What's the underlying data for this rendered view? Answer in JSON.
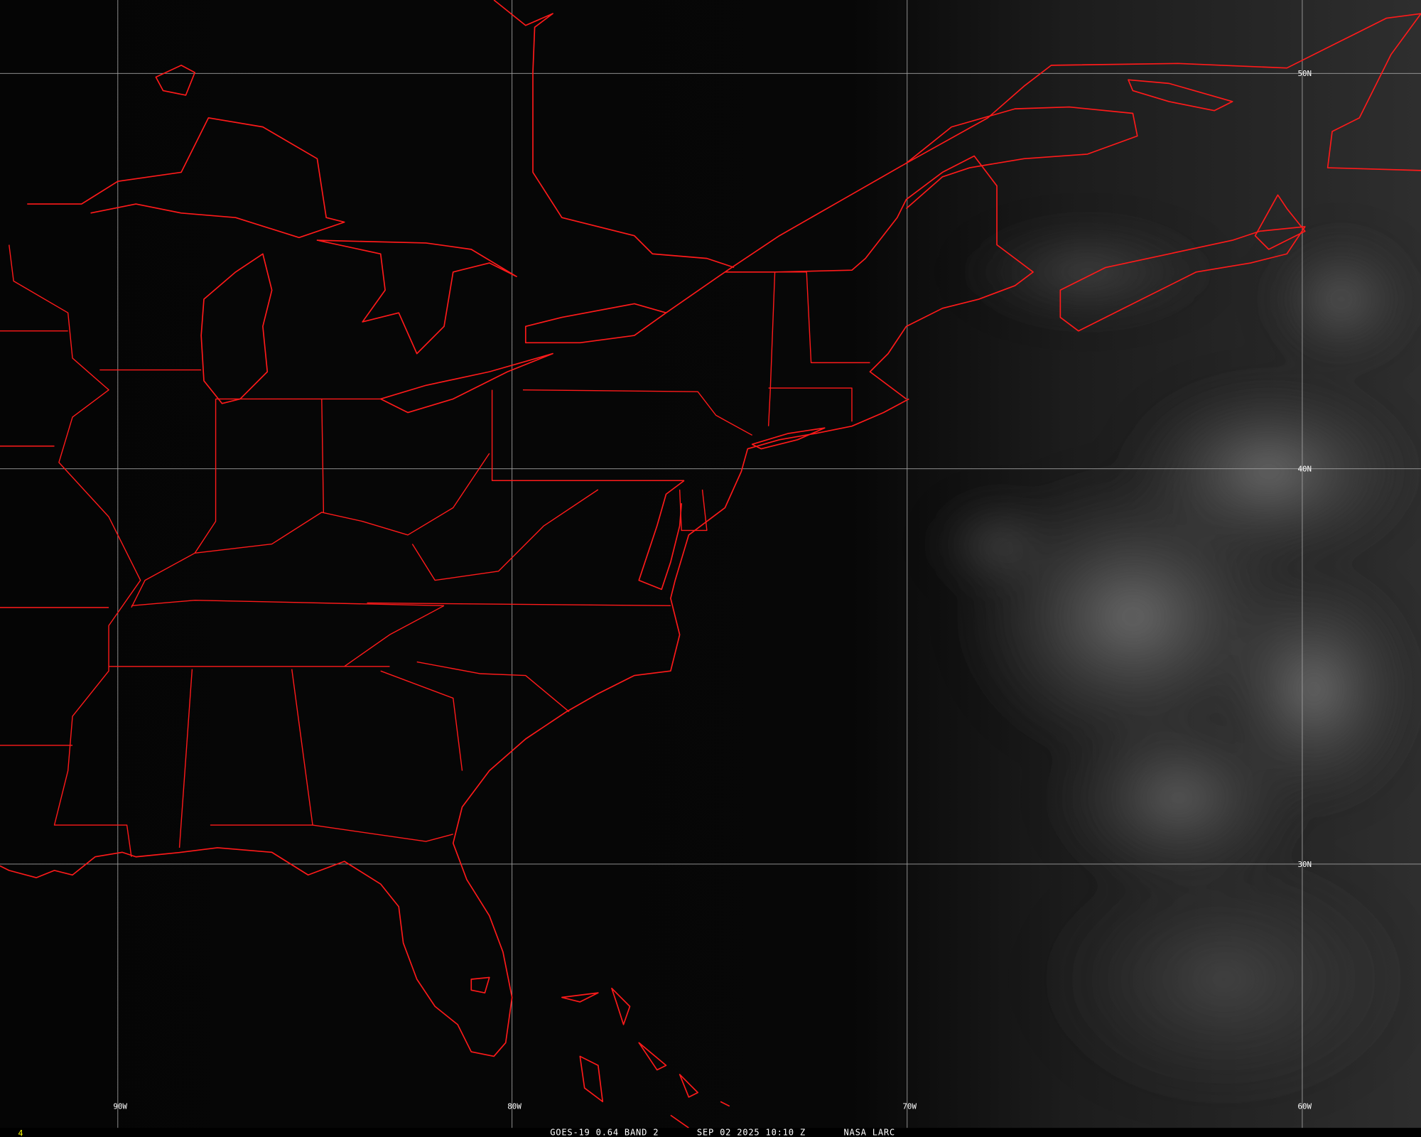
{
  "image": {
    "caption_satellite": "GOES-19 0.64 BAND 2",
    "caption_time": "SEP 02 2025 10:10 Z",
    "caption_source": "NASA LARC",
    "frame_number": "4"
  },
  "grid": {
    "longitude_labels": [
      "90W",
      "80W",
      "70W",
      "60W"
    ],
    "latitude_labels": [
      "50N",
      "40N",
      "30N"
    ]
  },
  "colors": {
    "map_outline": "#ff1a1a",
    "grid_lines": "#a0a0a0",
    "frame_number": "#ffff00",
    "background": "#050505"
  }
}
